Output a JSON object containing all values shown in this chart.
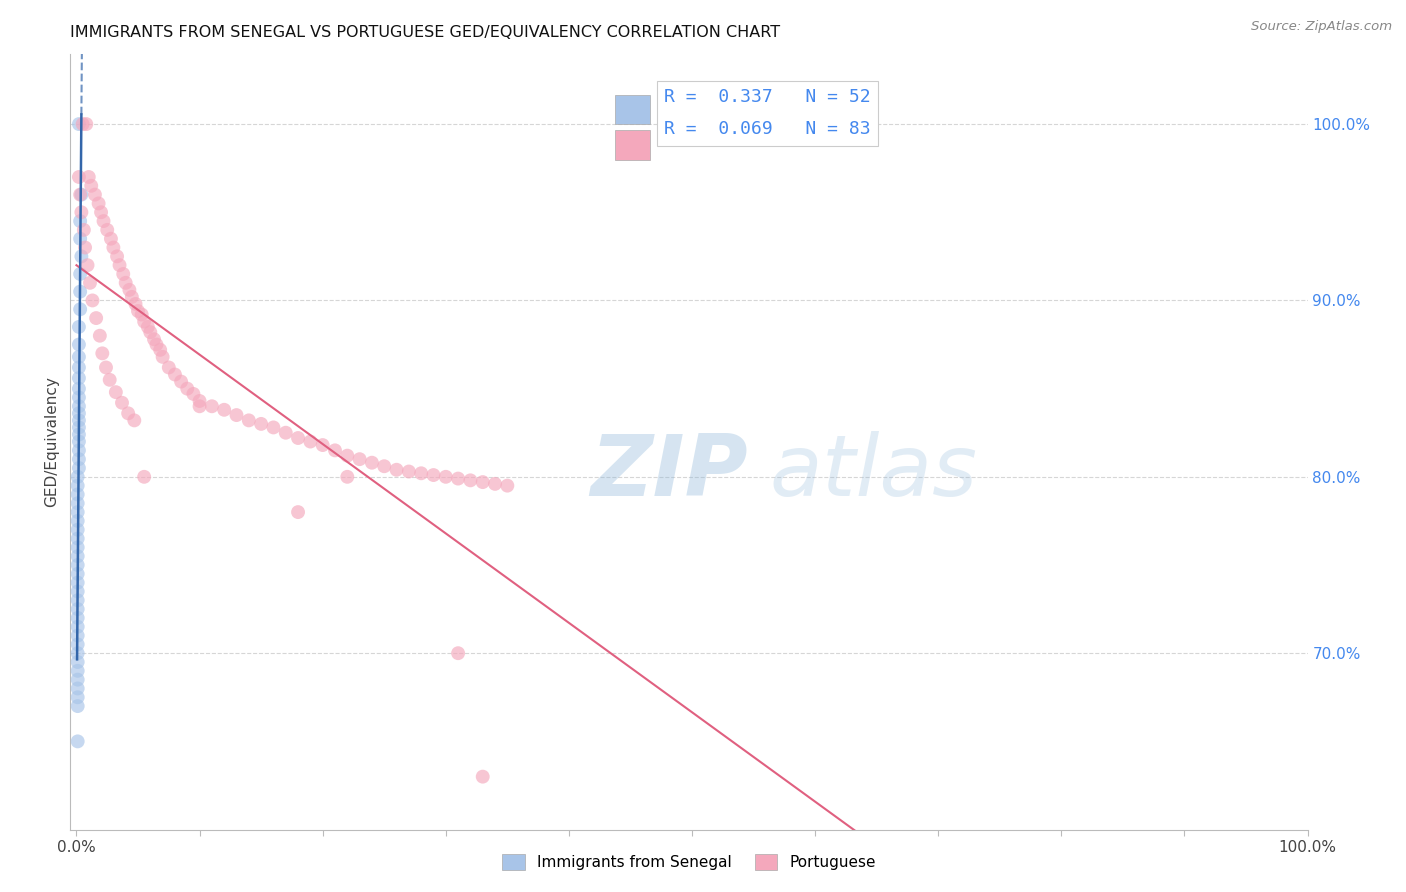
{
  "title": "IMMIGRANTS FROM SENEGAL VS PORTUGUESE GED/EQUIVALENCY CORRELATION CHART",
  "source": "Source: ZipAtlas.com",
  "ylabel": "GED/Equivalency",
  "right_ytick_labels": [
    "100.0%",
    "90.0%",
    "80.0%",
    "70.0%"
  ],
  "right_ytick_values": [
    1.0,
    0.9,
    0.8,
    0.7
  ],
  "watermark_zip": "ZIP",
  "watermark_atlas": "atlas",
  "blue_r": "0.337",
  "blue_n": "52",
  "pink_r": "0.069",
  "pink_n": "83",
  "blue_color": "#a8c4e8",
  "pink_color": "#f4a8bc",
  "blue_line_color": "#3366aa",
  "pink_line_color": "#e06080",
  "background_color": "#ffffff",
  "grid_color": "#cccccc",
  "title_color": "#111111",
  "right_axis_color": "#4488ee",
  "scatter_alpha": 0.65,
  "scatter_size": 100,
  "blue_scatter_x": [
    0.002,
    0.004,
    0.003,
    0.003,
    0.004,
    0.003,
    0.003,
    0.003,
    0.002,
    0.002,
    0.002,
    0.002,
    0.002,
    0.002,
    0.002,
    0.002,
    0.002,
    0.002,
    0.002,
    0.002,
    0.002,
    0.002,
    0.002,
    0.002,
    0.001,
    0.001,
    0.001,
    0.001,
    0.001,
    0.001,
    0.001,
    0.001,
    0.001,
    0.001,
    0.001,
    0.001,
    0.001,
    0.001,
    0.001,
    0.001,
    0.001,
    0.001,
    0.001,
    0.001,
    0.001,
    0.001,
    0.001,
    0.001,
    0.001,
    0.001,
    0.001,
    0.001
  ],
  "blue_scatter_y": [
    1.0,
    0.96,
    0.945,
    0.935,
    0.925,
    0.915,
    0.905,
    0.895,
    0.885,
    0.875,
    0.868,
    0.862,
    0.856,
    0.85,
    0.845,
    0.84,
    0.836,
    0.832,
    0.828,
    0.824,
    0.82,
    0.815,
    0.81,
    0.805,
    0.8,
    0.795,
    0.79,
    0.785,
    0.78,
    0.775,
    0.77,
    0.765,
    0.76,
    0.755,
    0.75,
    0.745,
    0.74,
    0.735,
    0.73,
    0.725,
    0.72,
    0.715,
    0.71,
    0.705,
    0.7,
    0.695,
    0.69,
    0.685,
    0.68,
    0.675,
    0.67,
    0.65
  ],
  "pink_scatter_x": [
    0.005,
    0.008,
    0.01,
    0.012,
    0.015,
    0.018,
    0.02,
    0.022,
    0.025,
    0.028,
    0.03,
    0.033,
    0.035,
    0.038,
    0.04,
    0.043,
    0.045,
    0.048,
    0.05,
    0.053,
    0.055,
    0.058,
    0.06,
    0.063,
    0.065,
    0.068,
    0.07,
    0.075,
    0.08,
    0.085,
    0.09,
    0.095,
    0.1,
    0.11,
    0.12,
    0.13,
    0.14,
    0.15,
    0.16,
    0.17,
    0.18,
    0.19,
    0.2,
    0.21,
    0.22,
    0.23,
    0.24,
    0.25,
    0.26,
    0.27,
    0.28,
    0.29,
    0.3,
    0.31,
    0.32,
    0.33,
    0.34,
    0.35,
    0.002,
    0.003,
    0.004,
    0.006,
    0.007,
    0.009,
    0.011,
    0.013,
    0.016,
    0.019,
    0.021,
    0.024,
    0.027,
    0.032,
    0.037,
    0.042,
    0.047,
    0.055,
    0.1,
    0.18,
    0.22,
    0.31,
    0.33
  ],
  "pink_scatter_y": [
    1.0,
    1.0,
    0.97,
    0.965,
    0.96,
    0.955,
    0.95,
    0.945,
    0.94,
    0.935,
    0.93,
    0.925,
    0.92,
    0.915,
    0.91,
    0.906,
    0.902,
    0.898,
    0.894,
    0.892,
    0.888,
    0.885,
    0.882,
    0.878,
    0.875,
    0.872,
    0.868,
    0.862,
    0.858,
    0.854,
    0.85,
    0.847,
    0.843,
    0.84,
    0.838,
    0.835,
    0.832,
    0.83,
    0.828,
    0.825,
    0.822,
    0.82,
    0.818,
    0.815,
    0.812,
    0.81,
    0.808,
    0.806,
    0.804,
    0.803,
    0.802,
    0.801,
    0.8,
    0.799,
    0.798,
    0.797,
    0.796,
    0.795,
    0.97,
    0.96,
    0.95,
    0.94,
    0.93,
    0.92,
    0.91,
    0.9,
    0.89,
    0.88,
    0.87,
    0.862,
    0.855,
    0.848,
    0.842,
    0.836,
    0.832,
    0.8,
    0.84,
    0.78,
    0.8,
    0.7,
    0.63
  ]
}
